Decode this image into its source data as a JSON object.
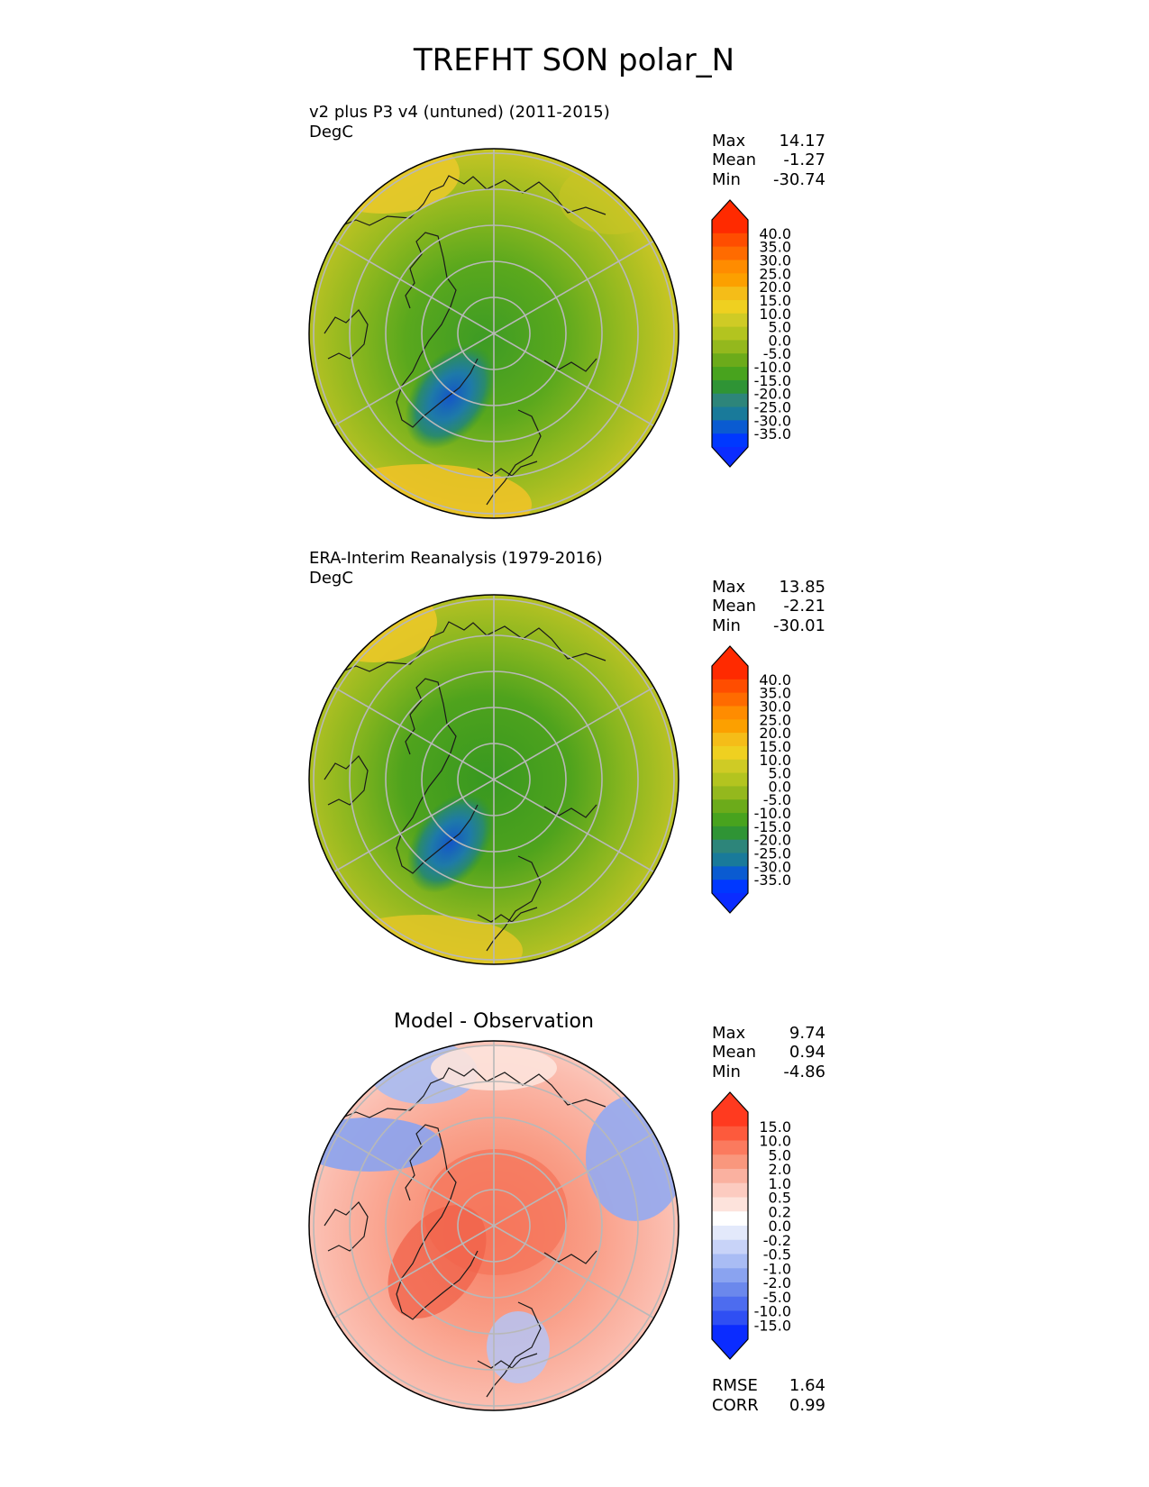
{
  "figure": {
    "title": "TREFHT SON polar_N"
  },
  "chart_data": [
    {
      "type": "heatmap",
      "projection": "north-polar-stereographic",
      "title": "v2 plus P3 v4 (untuned) (2011-2015)",
      "units": "DegC",
      "stats": [
        {
          "label": "Max",
          "value": "14.17"
        },
        {
          "label": "Mean",
          "value": "-1.27"
        },
        {
          "label": "Min",
          "value": "-30.74"
        }
      ],
      "colorbar": {
        "ticks": [
          "40.0",
          "35.0",
          "30.0",
          "25.0",
          "20.0",
          "15.0",
          "10.0",
          "5.0",
          "0.0",
          "-5.0",
          "-10.0",
          "-15.0",
          "-20.0",
          "-25.0",
          "-30.0",
          "-35.0"
        ],
        "colors": [
          "#ff2a00",
          "#ff4d00",
          "#ff6b00",
          "#ff8c00",
          "#fca000",
          "#f5bd18",
          "#efd020",
          "#cfcb25",
          "#b3c41f",
          "#94b81d",
          "#6cab1a",
          "#48a31e",
          "#2f9435",
          "#2d857a",
          "#197a9a",
          "#0a5bd1",
          "#0038ff"
        ],
        "over_color": "#ff2a00",
        "under_color": "#0b2cff"
      }
    },
    {
      "type": "heatmap",
      "projection": "north-polar-stereographic",
      "title": "ERA-Interim Reanalysis (1979-2016)",
      "units": "DegC",
      "stats": [
        {
          "label": "Max",
          "value": "13.85"
        },
        {
          "label": "Mean",
          "value": "-2.21"
        },
        {
          "label": "Min",
          "value": "-30.01"
        }
      ],
      "colorbar": {
        "ticks": [
          "40.0",
          "35.0",
          "30.0",
          "25.0",
          "20.0",
          "15.0",
          "10.0",
          "5.0",
          "0.0",
          "-5.0",
          "-10.0",
          "-15.0",
          "-20.0",
          "-25.0",
          "-30.0",
          "-35.0"
        ],
        "colors": [
          "#ff2a00",
          "#ff4d00",
          "#ff6b00",
          "#ff8c00",
          "#fca000",
          "#f5bd18",
          "#efd020",
          "#cfcb25",
          "#b3c41f",
          "#94b81d",
          "#6cab1a",
          "#48a31e",
          "#2f9435",
          "#2d857a",
          "#197a9a",
          "#0a5bd1",
          "#0038ff"
        ],
        "over_color": "#ff2a00",
        "under_color": "#0b2cff"
      }
    },
    {
      "type": "heatmap",
      "projection": "north-polar-stereographic",
      "title": "Model - Observation",
      "units": "",
      "stats": [
        {
          "label": "Max",
          "value": "9.74"
        },
        {
          "label": "Mean",
          "value": "0.94"
        },
        {
          "label": "Min",
          "value": "-4.86"
        }
      ],
      "metrics": [
        {
          "label": "RMSE",
          "value": "1.64"
        },
        {
          "label": "CORR",
          "value": "0.99"
        }
      ],
      "colorbar": {
        "ticks": [
          "15.0",
          "10.0",
          "5.0",
          "2.0",
          "1.0",
          "0.5",
          "0.2",
          "0.0",
          "-0.2",
          "-0.5",
          "-1.0",
          "-2.0",
          "-5.0",
          "-10.0",
          "-15.0"
        ],
        "colors": [
          "#ff3a1f",
          "#fd5a3c",
          "#fb7a5e",
          "#f9977d",
          "#fab1a0",
          "#fccbc0",
          "#fde3dc",
          "#ffffff",
          "#e3e9fb",
          "#c8d3f8",
          "#a9bcf4",
          "#8aa3f0",
          "#6b88ec",
          "#4d6cef",
          "#2f4ff3",
          "#0b2cff"
        ],
        "over_color": "#ff3a1f",
        "under_color": "#0b2cff"
      }
    }
  ]
}
